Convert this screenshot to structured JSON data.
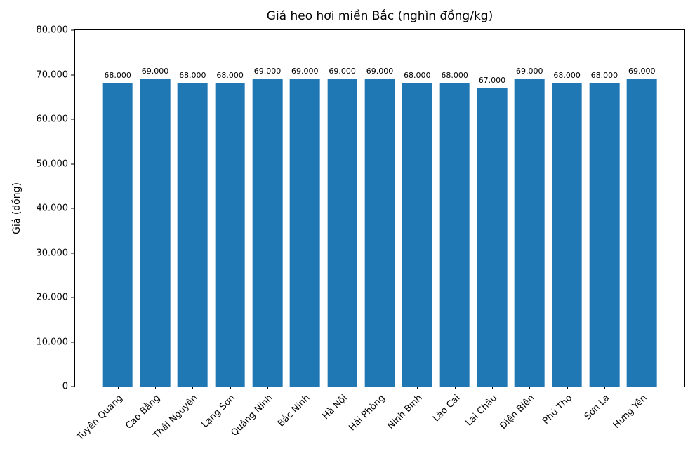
{
  "figure": {
    "background_color": "#ffffff",
    "text_color": "#000000"
  },
  "chart_data": {
    "type": "bar",
    "title": "Giá heo hơi miền Bắc (nghìn đồng/kg)",
    "xlabel": "",
    "ylabel": "Giá (đồng)",
    "categories": [
      "Tuyên Quang",
      "Cao Bằng",
      "Thái Nguyên",
      "Lạng Sơn",
      "Quảng Ninh",
      "Bắc Ninh",
      "Hà Nội",
      "Hải Phòng",
      "Ninh Bình",
      "Lào Cai",
      "Lai Châu",
      "Điện Biên",
      "Phú Thọ",
      "Sơn La",
      "Hưng Yên"
    ],
    "values": [
      68000,
      69000,
      68000,
      68000,
      69000,
      69000,
      69000,
      69000,
      68000,
      68000,
      67000,
      69000,
      68000,
      68000,
      69000
    ],
    "bar_labels": [
      "68.000",
      "69.000",
      "68.000",
      "68.000",
      "69.000",
      "69.000",
      "69.000",
      "69.000",
      "68.000",
      "68.000",
      "67.000",
      "69.000",
      "68.000",
      "68.000",
      "69.000"
    ],
    "ylim": [
      0,
      80000
    ],
    "yticks": [
      {
        "value": 0,
        "label": "0"
      },
      {
        "value": 10000,
        "label": "10.000"
      },
      {
        "value": 20000,
        "label": "20.000"
      },
      {
        "value": 30000,
        "label": "30.000"
      },
      {
        "value": 40000,
        "label": "40.000"
      },
      {
        "value": 50000,
        "label": "50.000"
      },
      {
        "value": 60000,
        "label": "60.000"
      },
      {
        "value": 70000,
        "label": "70.000"
      },
      {
        "value": 80000,
        "label": "80.000"
      }
    ],
    "bar_color": "#1f77b4",
    "grid": false,
    "legend": null,
    "x_tick_rotation_deg": 45
  }
}
